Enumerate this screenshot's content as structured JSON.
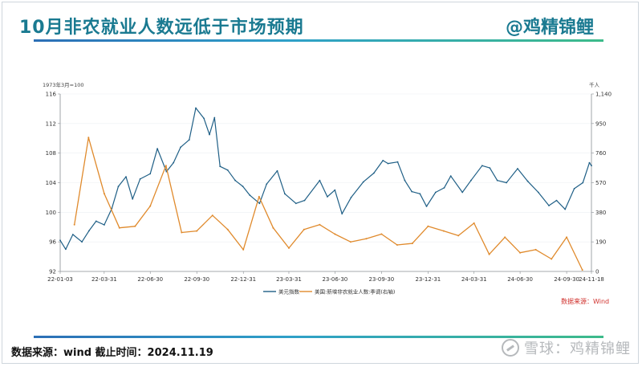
{
  "header": {
    "title": "10月非农就业人数远低于市场预期",
    "brand": "@鸡精锦鲤"
  },
  "footer": {
    "text": "数据来源：wind 截止时间：2024.11.19"
  },
  "watermark": {
    "text": "雪球：鸡精锦鲤"
  },
  "colors": {
    "dollar_index": "#1f5f86",
    "nonfarm": "#e08a2c",
    "accent": "#1a7a91",
    "source": "#d0312d"
  },
  "chart_data": {
    "type": "line",
    "left_unit": "1973年3月=100",
    "right_unit": "千人",
    "source_note": "数据来源：Wind",
    "x_ticks": [
      "22-01-03",
      "22-03-31",
      "22-06-30",
      "22-09-30",
      "22-12-31",
      "23-03-31",
      "23-06-30",
      "23-09-30",
      "23-12-31",
      "24-03-31",
      "24-06-30",
      "24-09-30",
      "24-11-18"
    ],
    "y_left": {
      "ticks": [
        "92",
        "96",
        "100",
        "104",
        "108",
        "112",
        "116"
      ],
      "range": [
        92,
        116
      ]
    },
    "y_right": {
      "ticks": [
        "0",
        "190",
        "380",
        "570",
        "760",
        "950",
        "1,140"
      ],
      "range": [
        0,
        1140
      ]
    },
    "series": [
      {
        "name": "美元指数",
        "axis": "left",
        "points": [
          [
            "2022-01-03",
            96.2
          ],
          [
            "2022-01-14",
            95.0
          ],
          [
            "2022-01-28",
            97.0
          ],
          [
            "2022-02-15",
            96.0
          ],
          [
            "2022-03-01",
            97.5
          ],
          [
            "2022-03-15",
            98.8
          ],
          [
            "2022-03-31",
            98.3
          ],
          [
            "2022-04-15",
            100.5
          ],
          [
            "2022-04-28",
            103.5
          ],
          [
            "2022-05-13",
            104.8
          ],
          [
            "2022-05-26",
            101.8
          ],
          [
            "2022-06-10",
            104.5
          ],
          [
            "2022-06-30",
            105.2
          ],
          [
            "2022-07-14",
            108.6
          ],
          [
            "2022-08-01",
            105.5
          ],
          [
            "2022-08-15",
            106.7
          ],
          [
            "2022-08-29",
            108.8
          ],
          [
            "2022-09-15",
            109.8
          ],
          [
            "2022-09-28",
            114.1
          ],
          [
            "2022-10-14",
            112.7
          ],
          [
            "2022-10-25",
            110.5
          ],
          [
            "2022-11-04",
            112.8
          ],
          [
            "2022-11-15",
            106.2
          ],
          [
            "2022-11-30",
            105.7
          ],
          [
            "2022-12-15",
            104.3
          ],
          [
            "2022-12-30",
            103.5
          ],
          [
            "2023-01-13",
            102.3
          ],
          [
            "2023-02-01",
            101.2
          ],
          [
            "2023-02-15",
            103.8
          ],
          [
            "2023-03-08",
            105.6
          ],
          [
            "2023-03-23",
            102.5
          ],
          [
            "2023-04-14",
            101.2
          ],
          [
            "2023-05-01",
            101.6
          ],
          [
            "2023-05-31",
            104.3
          ],
          [
            "2023-06-15",
            102.1
          ],
          [
            "2023-06-30",
            103.0
          ],
          [
            "2023-07-14",
            99.8
          ],
          [
            "2023-08-01",
            102.0
          ],
          [
            "2023-08-25",
            104.1
          ],
          [
            "2023-09-15",
            105.3
          ],
          [
            "2023-10-03",
            107.0
          ],
          [
            "2023-10-13",
            106.6
          ],
          [
            "2023-11-01",
            106.8
          ],
          [
            "2023-11-15",
            104.3
          ],
          [
            "2023-11-29",
            102.8
          ],
          [
            "2023-12-15",
            102.5
          ],
          [
            "2023-12-28",
            100.8
          ],
          [
            "2024-01-15",
            102.7
          ],
          [
            "2024-02-01",
            103.3
          ],
          [
            "2024-02-14",
            104.9
          ],
          [
            "2024-03-08",
            102.7
          ],
          [
            "2024-03-25",
            104.3
          ],
          [
            "2024-04-16",
            106.3
          ],
          [
            "2024-05-01",
            106.0
          ],
          [
            "2024-05-16",
            104.3
          ],
          [
            "2024-06-03",
            104.0
          ],
          [
            "2024-06-25",
            105.9
          ],
          [
            "2024-07-15",
            104.2
          ],
          [
            "2024-08-05",
            102.7
          ],
          [
            "2024-08-26",
            100.9
          ],
          [
            "2024-09-10",
            101.6
          ],
          [
            "2024-09-27",
            100.4
          ],
          [
            "2024-10-15",
            103.2
          ],
          [
            "2024-11-01",
            104.0
          ],
          [
            "2024-11-14",
            106.7
          ],
          [
            "2024-11-18",
            106.3
          ]
        ]
      },
      {
        "name": "美国:新增非农就业人数:季调(右轴)",
        "axis": "right",
        "points": [
          [
            "2022-01-31",
            300
          ],
          [
            "2022-02-28",
            860
          ],
          [
            "2022-03-31",
            500
          ],
          [
            "2022-04-30",
            280
          ],
          [
            "2022-05-31",
            290
          ],
          [
            "2022-06-30",
            420
          ],
          [
            "2022-07-31",
            680
          ],
          [
            "2022-08-31",
            250
          ],
          [
            "2022-09-30",
            260
          ],
          [
            "2022-10-31",
            360
          ],
          [
            "2022-11-30",
            270
          ],
          [
            "2022-12-31",
            140
          ],
          [
            "2023-01-31",
            480
          ],
          [
            "2023-02-28",
            280
          ],
          [
            "2023-03-31",
            150
          ],
          [
            "2023-04-30",
            270
          ],
          [
            "2023-05-31",
            300
          ],
          [
            "2023-06-30",
            240
          ],
          [
            "2023-07-31",
            190
          ],
          [
            "2023-08-31",
            210
          ],
          [
            "2023-09-30",
            240
          ],
          [
            "2023-10-31",
            170
          ],
          [
            "2023-11-30",
            180
          ],
          [
            "2023-12-31",
            290
          ],
          [
            "2024-01-31",
            260
          ],
          [
            "2024-02-29",
            230
          ],
          [
            "2024-03-31",
            310
          ],
          [
            "2024-04-30",
            110
          ],
          [
            "2024-05-31",
            220
          ],
          [
            "2024-06-30",
            120
          ],
          [
            "2024-07-31",
            140
          ],
          [
            "2024-08-31",
            80
          ],
          [
            "2024-09-30",
            220
          ],
          [
            "2024-10-31",
            10
          ]
        ]
      }
    ]
  }
}
